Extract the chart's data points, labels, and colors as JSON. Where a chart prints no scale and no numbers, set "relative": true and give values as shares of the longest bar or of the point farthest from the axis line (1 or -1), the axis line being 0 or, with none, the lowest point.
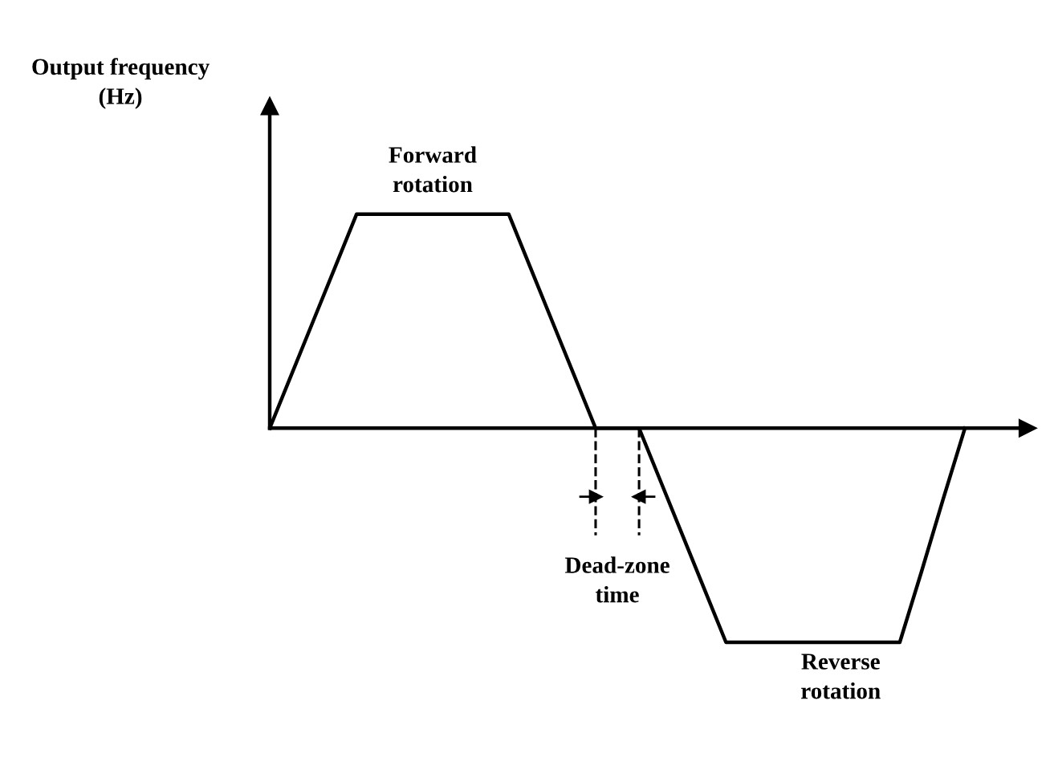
{
  "chart_data": {
    "type": "line",
    "relative": true,
    "ylabel": "Output frequency (Hz)",
    "categories": [
      null,
      null,
      null,
      null,
      null,
      null,
      null,
      null,
      null,
      null,
      null,
      null,
      null,
      null,
      null,
      null,
      null,
      null,
      null,
      null,
      null,
      null,
      null,
      null,
      null,
      null,
      null,
      null,
      null,
      null,
      null,
      null,
      null
    ],
    "series": [
      {
        "color": "#000000",
        "values": [
          0,
          0.25,
          0.5,
          0.75,
          1,
          1,
          1,
          1,
          1,
          1,
          1,
          1,
          0.75,
          0.5,
          0.25,
          0,
          0,
          0,
          -0.25,
          -0.5,
          -0.75,
          -1,
          -1,
          -1,
          -1,
          -1,
          -1,
          -1,
          -1,
          -1,
          -0.67,
          -0.33,
          0
        ]
      }
    ],
    "annotations": [
      "Forward rotation",
      "Dead-zone time",
      "Reverse rotation"
    ],
    "marker": "none",
    "line_style": "solid",
    "legend": false
  }
}
